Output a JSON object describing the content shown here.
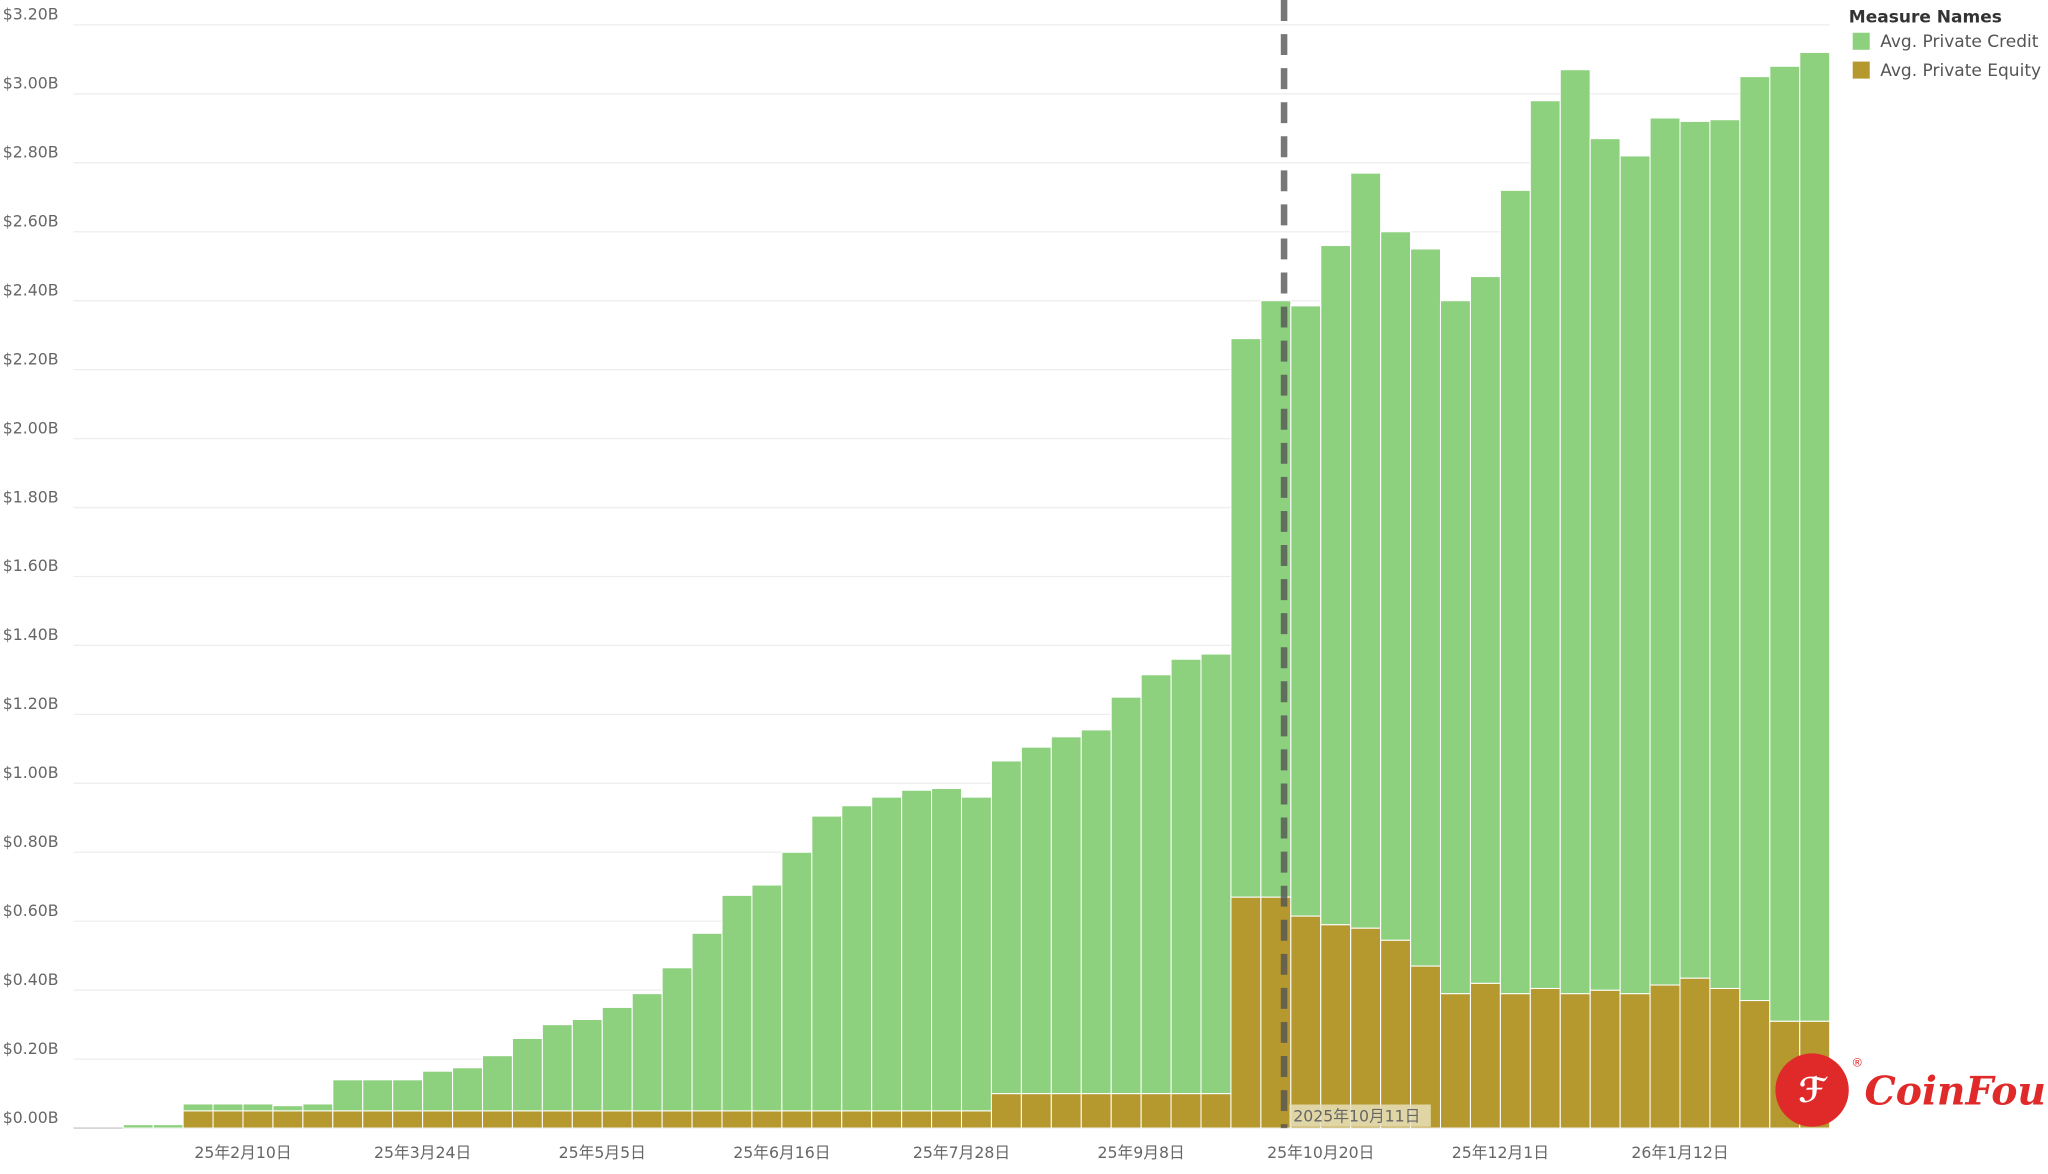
{
  "chart_data": {
    "type": "stacked-bar",
    "categories": [
      null,
      null,
      null,
      null,
      "25年2月10日",
      null,
      null,
      null,
      null,
      null,
      "25年3月24日",
      null,
      null,
      null,
      null,
      null,
      "25年5月5日",
      null,
      null,
      null,
      null,
      null,
      "25年6月16日",
      null,
      null,
      null,
      null,
      null,
      "25年7月28日",
      null,
      null,
      null,
      null,
      null,
      "25年9月8日",
      null,
      null,
      null,
      null,
      null,
      "25年10月20日",
      null,
      null,
      null,
      null,
      null,
      "25年12月1日",
      null,
      null,
      null,
      null,
      null,
      "26年1月12日",
      null,
      null,
      null,
      null
    ],
    "series": [
      {
        "name": "Avg. Private Equity",
        "color": "#b5982e",
        "values": [
          0,
          0,
          0.05,
          0.05,
          0.05,
          0.05,
          0.05,
          0.05,
          0.05,
          0.05,
          0.05,
          0.05,
          0.05,
          0.05,
          0.05,
          0.05,
          0.05,
          0.05,
          0.05,
          0.05,
          0.05,
          0.05,
          0.05,
          0.05,
          0.05,
          0.05,
          0.05,
          0.05,
          0.05,
          0.1,
          0.1,
          0.1,
          0.1,
          0.1,
          0.1,
          0.1,
          0.1,
          0.67,
          0.67,
          0.615,
          0.59,
          0.58,
          0.545,
          0.47,
          0.39,
          0.42,
          0.39,
          0.405,
          0.39,
          0.4,
          0.39,
          0.415,
          0.435,
          0.405,
          0.37,
          0.31,
          0.31
        ]
      },
      {
        "name": "Avg. Private Credit",
        "color": "#8dd17e",
        "values": [
          0.01,
          0.01,
          0.02,
          0.02,
          0.02,
          0.015,
          0.02,
          0.09,
          0.09,
          0.09,
          0.115,
          0.125,
          0.16,
          0.21,
          0.25,
          0.265,
          0.3,
          0.34,
          0.415,
          0.515,
          0.625,
          0.655,
          0.75,
          0.855,
          0.885,
          0.91,
          0.93,
          0.935,
          0.91,
          0.965,
          1.005,
          1.035,
          1.055,
          1.15,
          1.215,
          1.26,
          1.275,
          1.62,
          1.73,
          1.77,
          1.97,
          2.19,
          2.055,
          2.08,
          2.01,
          2.05,
          2.33,
          2.575,
          2.68,
          2.47,
          2.43,
          2.515,
          2.485,
          2.52,
          2.68,
          2.77,
          2.81
        ]
      }
    ],
    "legend_title": "Measure Names",
    "ylim": [
      0,
      3.2
    ],
    "yticks": [
      {
        "value": 0,
        "label": "$0.00B"
      },
      {
        "value": 0.2,
        "label": "$0.20B"
      },
      {
        "value": 0.4,
        "label": "$0.40B"
      },
      {
        "value": 0.6,
        "label": "$0.60B"
      },
      {
        "value": 0.8,
        "label": "$0.80B"
      },
      {
        "value": 1,
        "label": "$1.00B"
      },
      {
        "value": 1.2,
        "label": "$1.20B"
      },
      {
        "value": 1.4,
        "label": "$1.40B"
      },
      {
        "value": 1.6,
        "label": "$1.60B"
      },
      {
        "value": 1.8,
        "label": "$1.80B"
      },
      {
        "value": 2,
        "label": "$2.00B"
      },
      {
        "value": 2.2,
        "label": "$2.20B"
      },
      {
        "value": 2.4,
        "label": "$2.40B"
      },
      {
        "value": 2.6,
        "label": "$2.60B"
      },
      {
        "value": 2.8,
        "label": "$2.80B"
      },
      {
        "value": 3,
        "label": "$3.00B"
      },
      {
        "value": 3.2,
        "label": "$3.20B"
      }
    ],
    "grid": true,
    "reference_line_label": "2025年10月11日",
    "logo": "CoinFound",
    "logo_mark": "®"
  }
}
